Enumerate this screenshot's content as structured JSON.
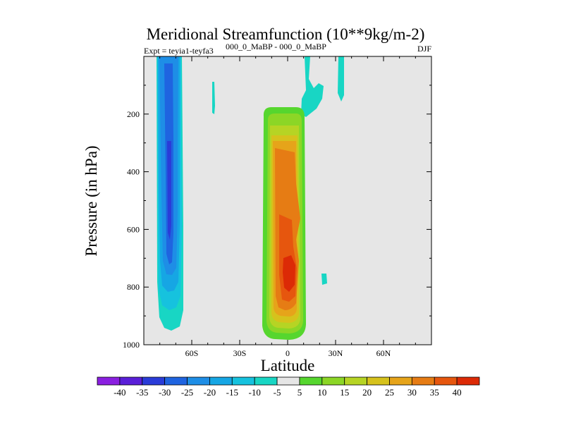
{
  "chart_data": {
    "type": "contour",
    "title": "Meridional Streamfunction (10**9kg/m-2)",
    "subtitle_left_prefix": "Expt = teyia1-teyfa3",
    "subtitle_left_suffix": "000_0_MaBP - 000_0_MaBP",
    "subtitle_right": "DJF",
    "xlabel": "Latitude",
    "ylabel": "Pressure (in hPa)",
    "xlim": [
      -90,
      90
    ],
    "ylim": [
      0,
      1000
    ],
    "y_inverted": true,
    "x_ticks": [
      {
        "value": -60,
        "label": "60S"
      },
      {
        "value": -30,
        "label": "30S"
      },
      {
        "value": 0,
        "label": "0"
      },
      {
        "value": 30,
        "label": "30N"
      },
      {
        "value": 60,
        "label": "60N"
      }
    ],
    "y_ticks": [
      {
        "value": 200,
        "label": "200"
      },
      {
        "value": 400,
        "label": "400"
      },
      {
        "value": 600,
        "label": "600"
      },
      {
        "value": 800,
        "label": "800"
      },
      {
        "value": 1000,
        "label": "1000"
      }
    ],
    "colorbar": {
      "levels": [
        -40,
        -35,
        -30,
        -25,
        -20,
        -15,
        -10,
        -5,
        5,
        10,
        15,
        20,
        25,
        30,
        35,
        40
      ],
      "labels": [
        "-40",
        "-35",
        "-30",
        "-25",
        "-20",
        "-15",
        "-10",
        "-5",
        "5",
        "10",
        "15",
        "20",
        "25",
        "30",
        "35",
        "40"
      ],
      "colors": [
        "#8a1fe0",
        "#5a1fd8",
        "#2a3cd8",
        "#1f64e0",
        "#1e8ee6",
        "#16a6e4",
        "#16c2de",
        "#18d6c4",
        "#e6e6e6",
        "#56d62e",
        "#8cd626",
        "#b6d424",
        "#d6c21c",
        "#e6a41a",
        "#e67c14",
        "#e6560e",
        "#dc2a06"
      ]
    },
    "regions": [
      {
        "name": "southern-negative-cell",
        "lat_range": [
          -75,
          -59
        ],
        "p_range": [
          0,
          970
        ],
        "min_value": -30
      },
      {
        "name": "equatorial-positive-cell",
        "lat_range": [
          -12,
          11
        ],
        "p_range": [
          180,
          980
        ],
        "max_value": 40,
        "max_at": {
          "lat": 0,
          "p": 780
        }
      }
    ]
  }
}
